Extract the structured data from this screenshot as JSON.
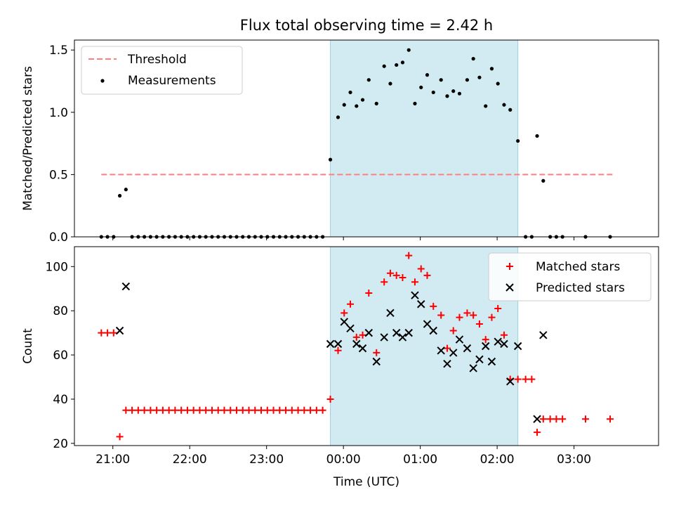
{
  "title": "Flux total observing time = 2.42 h",
  "colors": {
    "threshold": "#ff7f7f",
    "measurement": "#000000",
    "matched": "#ff0000",
    "predicted": "#000000",
    "span": "#add8e6"
  },
  "chart_data": [
    {
      "type": "scatter",
      "panel": "top",
      "ylabel": "Matched/Predicted stars",
      "xlim": [
        -3.5,
        4.1
      ],
      "ylim": [
        0,
        1.58
      ],
      "grid": false,
      "legend": "top-left",
      "yticks": [
        0,
        0.5,
        1.0,
        1.5
      ],
      "ytick_labels": [
        "0.0",
        "0.5",
        "1.0",
        "1.5"
      ],
      "highlight_span": {
        "x": [
          -0.17,
          2.27
        ]
      },
      "threshold": {
        "name": "Threshold",
        "y": 0.5,
        "x": [
          -3.15,
          3.5
        ]
      },
      "series": [
        {
          "name": "Measurements",
          "x": [
            -3.15,
            -3.07,
            -2.99,
            -2.91,
            -2.83,
            -2.75,
            -2.67,
            -2.59,
            -2.51,
            -2.43,
            -2.35,
            -2.27,
            -2.19,
            -2.11,
            -2.03,
            -1.95,
            -1.87,
            -1.79,
            -1.71,
            -1.63,
            -1.55,
            -1.47,
            -1.39,
            -1.31,
            -1.23,
            -1.15,
            -1.07,
            -0.99,
            -0.91,
            -0.83,
            -0.75,
            -0.67,
            -0.59,
            -0.51,
            -0.43,
            -0.35,
            -0.27,
            -0.17,
            -0.07,
            0.01,
            0.09,
            0.17,
            0.25,
            0.33,
            0.43,
            0.53,
            0.61,
            0.69,
            0.77,
            0.85,
            0.93,
            1.01,
            1.09,
            1.17,
            1.27,
            1.35,
            1.43,
            1.51,
            1.61,
            1.69,
            1.77,
            1.85,
            1.93,
            2.01,
            2.09,
            2.17,
            2.27,
            2.37,
            2.45,
            2.52,
            2.6,
            2.69,
            2.77,
            2.85,
            3.15,
            3.47
          ],
          "y": [
            0,
            0,
            0,
            0.33,
            0.38,
            0,
            0,
            0,
            0,
            0,
            0,
            0,
            0,
            0,
            0,
            0,
            0,
            0,
            0,
            0,
            0,
            0,
            0,
            0,
            0,
            0,
            0,
            0,
            0,
            0,
            0,
            0,
            0,
            0,
            0,
            0,
            0,
            0.62,
            0.96,
            1.06,
            1.16,
            1.05,
            1.1,
            1.26,
            1.07,
            1.37,
            1.23,
            1.38,
            1.4,
            1.5,
            1.07,
            1.2,
            1.3,
            1.16,
            1.26,
            1.13,
            1.17,
            1.15,
            1.26,
            1.43,
            1.28,
            1.05,
            1.35,
            1.23,
            1.06,
            1.02,
            0.77,
            0,
            0,
            0.81,
            0.45,
            0,
            0,
            0,
            0,
            0
          ]
        }
      ]
    },
    {
      "type": "scatter",
      "panel": "bottom",
      "xlabel": "Time (UTC)",
      "ylabel": "Count",
      "xlim": [
        -3.5,
        4.1
      ],
      "ylim": [
        19,
        109
      ],
      "grid": false,
      "legend": "top-right",
      "yticks": [
        20,
        40,
        60,
        80,
        100
      ],
      "ytick_labels": [
        "20",
        "40",
        "60",
        "80",
        "100"
      ],
      "xticks": [
        -3,
        -2,
        -1,
        0,
        1,
        2,
        3
      ],
      "xtick_labels": [
        "21:00",
        "22:00",
        "23:00",
        "00:00",
        "01:00",
        "02:00",
        "03:00"
      ],
      "highlight_span": {
        "x": [
          -0.17,
          2.27
        ]
      },
      "series": [
        {
          "name": "Matched stars",
          "marker": "plus",
          "x": [
            -3.15,
            -3.07,
            -2.99,
            -2.91,
            -2.83,
            -2.75,
            -2.67,
            -2.59,
            -2.51,
            -2.43,
            -2.35,
            -2.27,
            -2.19,
            -2.11,
            -2.03,
            -1.95,
            -1.87,
            -1.79,
            -1.71,
            -1.63,
            -1.55,
            -1.47,
            -1.39,
            -1.31,
            -1.23,
            -1.15,
            -1.07,
            -0.99,
            -0.91,
            -0.83,
            -0.75,
            -0.67,
            -0.59,
            -0.51,
            -0.43,
            -0.35,
            -0.27,
            -0.17,
            -0.07,
            0.01,
            0.09,
            0.17,
            0.25,
            0.33,
            0.43,
            0.53,
            0.61,
            0.69,
            0.77,
            0.85,
            0.93,
            1.01,
            1.09,
            1.17,
            1.27,
            1.35,
            1.43,
            1.51,
            1.61,
            1.69,
            1.77,
            1.85,
            1.93,
            2.01,
            2.09,
            2.17,
            2.27,
            2.37,
            2.45,
            2.52,
            2.6,
            2.69,
            2.77,
            2.85,
            3.15,
            3.47
          ],
          "y": [
            70,
            70,
            70,
            23,
            35,
            35,
            35,
            35,
            35,
            35,
            35,
            35,
            35,
            35,
            35,
            35,
            35,
            35,
            35,
            35,
            35,
            35,
            35,
            35,
            35,
            35,
            35,
            35,
            35,
            35,
            35,
            35,
            35,
            35,
            35,
            35,
            35,
            40,
            62,
            79,
            83,
            68,
            69,
            88,
            61,
            93,
            97,
            96,
            95,
            105,
            93,
            99,
            96,
            82,
            78,
            63,
            71,
            77,
            79,
            78,
            74,
            67,
            77,
            81,
            69,
            49,
            49,
            49,
            49,
            25,
            31,
            31,
            31,
            31,
            31,
            31
          ]
        },
        {
          "name": "Predicted stars",
          "marker": "x",
          "x": [
            -2.91,
            -2.83,
            -0.17,
            -0.07,
            0.01,
            0.09,
            0.17,
            0.25,
            0.33,
            0.43,
            0.53,
            0.61,
            0.69,
            0.77,
            0.85,
            0.93,
            1.01,
            1.09,
            1.17,
            1.27,
            1.35,
            1.43,
            1.51,
            1.61,
            1.69,
            1.77,
            1.85,
            1.93,
            2.01,
            2.09,
            2.17,
            2.27,
            2.52,
            2.6
          ],
          "y": [
            71,
            91,
            65,
            65,
            75,
            72,
            65,
            63,
            70,
            57,
            68,
            79,
            70,
            68,
            70,
            87,
            83,
            74,
            71,
            62,
            56,
            61,
            67,
            63,
            54,
            58,
            64,
            57,
            66,
            65,
            48,
            64,
            31,
            69
          ]
        }
      ]
    }
  ]
}
